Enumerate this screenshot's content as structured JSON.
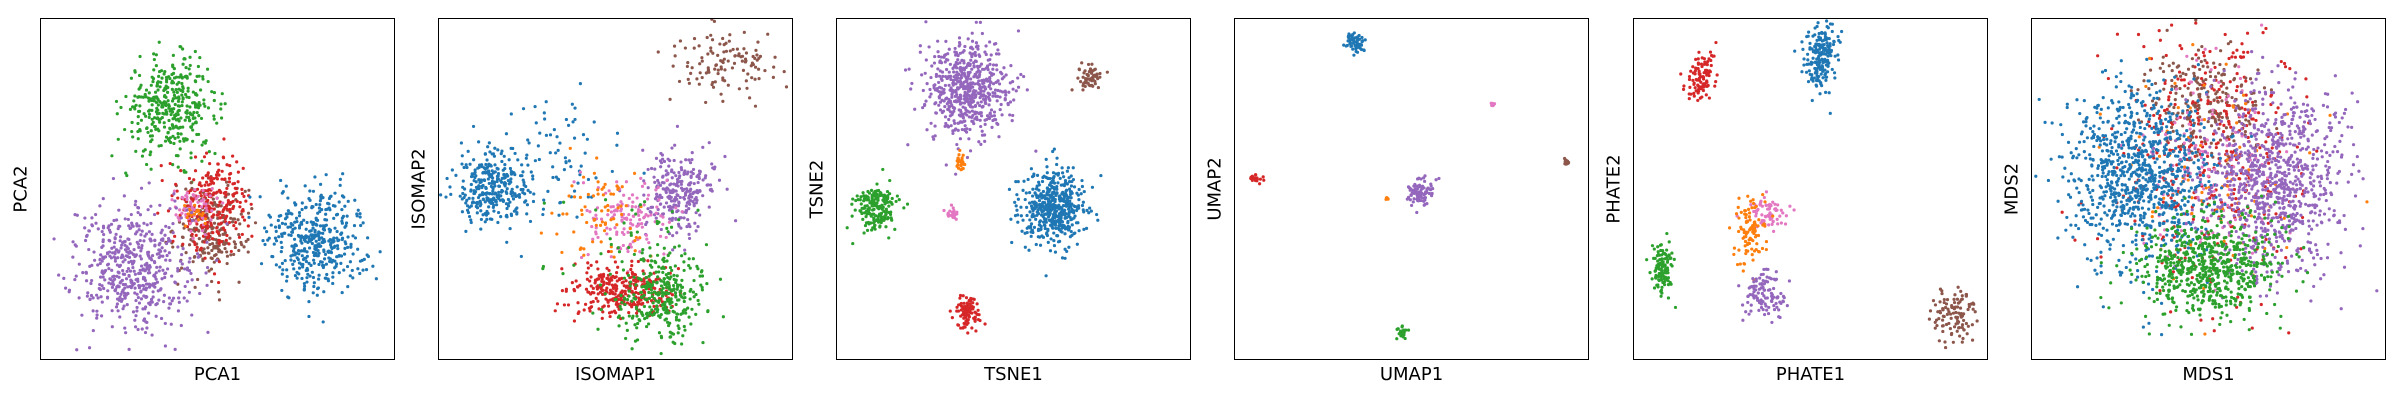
{
  "palette": {
    "blue": "#1f77b4",
    "orange": "#ff7f0e",
    "green": "#2ca02c",
    "red": "#d62728",
    "purple": "#9467bd",
    "brown": "#8c564b",
    "pink": "#e377c2"
  },
  "chart_data": [
    {
      "type": "scatter",
      "xlabel": "PCA1",
      "ylabel": "PCA2",
      "xlim": [
        0,
        1
      ],
      "ylim": [
        0,
        1
      ],
      "grid": false,
      "ticks": false,
      "clusters": [
        {
          "color": "green",
          "cx": 0.37,
          "cy": 0.74,
          "sx": 0.065,
          "sy": 0.07,
          "n": 380
        },
        {
          "color": "brown",
          "cx": 0.48,
          "cy": 0.38,
          "sx": 0.05,
          "sy": 0.07,
          "n": 220
        },
        {
          "color": "red",
          "cx": 0.49,
          "cy": 0.46,
          "sx": 0.05,
          "sy": 0.07,
          "n": 260
        },
        {
          "color": "pink",
          "cx": 0.44,
          "cy": 0.45,
          "sx": 0.03,
          "sy": 0.04,
          "n": 60
        },
        {
          "color": "orange",
          "cx": 0.44,
          "cy": 0.42,
          "sx": 0.02,
          "sy": 0.02,
          "n": 20
        },
        {
          "color": "blue",
          "cx": 0.78,
          "cy": 0.35,
          "sx": 0.07,
          "sy": 0.075,
          "n": 420
        },
        {
          "color": "purple",
          "cx": 0.26,
          "cy": 0.27,
          "sx": 0.085,
          "sy": 0.09,
          "n": 520
        }
      ]
    },
    {
      "type": "scatter",
      "xlabel": "ISOMAP1",
      "ylabel": "ISOMAP2",
      "xlim": [
        0,
        1
      ],
      "ylim": [
        0,
        1
      ],
      "grid": false,
      "ticks": false,
      "clusters": [
        {
          "color": "blue",
          "cx": 0.15,
          "cy": 0.51,
          "sx": 0.05,
          "sy": 0.055,
          "n": 320
        },
        {
          "color": "blue",
          "cx": 0.33,
          "cy": 0.58,
          "sx": 0.08,
          "sy": 0.1,
          "n": 80
        },
        {
          "color": "brown",
          "cx": 0.82,
          "cy": 0.87,
          "sx": 0.08,
          "sy": 0.05,
          "n": 120
        },
        {
          "color": "purple",
          "cx": 0.68,
          "cy": 0.49,
          "sx": 0.05,
          "sy": 0.06,
          "n": 260
        },
        {
          "color": "pink",
          "cx": 0.53,
          "cy": 0.41,
          "sx": 0.06,
          "sy": 0.06,
          "n": 130
        },
        {
          "color": "orange",
          "cx": 0.45,
          "cy": 0.42,
          "sx": 0.06,
          "sy": 0.07,
          "n": 70
        },
        {
          "color": "red",
          "cx": 0.52,
          "cy": 0.2,
          "sx": 0.07,
          "sy": 0.04,
          "n": 320
        },
        {
          "color": "green",
          "cx": 0.63,
          "cy": 0.18,
          "sx": 0.06,
          "sy": 0.06,
          "n": 300
        },
        {
          "color": "green",
          "cx": 0.55,
          "cy": 0.3,
          "sx": 0.12,
          "sy": 0.1,
          "n": 60
        }
      ]
    },
    {
      "type": "scatter",
      "xlabel": "TSNE1",
      "ylabel": "TSNE2",
      "xlim": [
        0,
        1
      ],
      "ylim": [
        0,
        1
      ],
      "grid": false,
      "ticks": false,
      "clusters": [
        {
          "color": "purple",
          "cx": 0.37,
          "cy": 0.79,
          "sx": 0.06,
          "sy": 0.075,
          "n": 600
        },
        {
          "color": "brown",
          "cx": 0.72,
          "cy": 0.83,
          "sx": 0.016,
          "sy": 0.02,
          "n": 60
        },
        {
          "color": "orange",
          "cx": 0.35,
          "cy": 0.58,
          "sx": 0.008,
          "sy": 0.01,
          "n": 25
        },
        {
          "color": "green",
          "cx": 0.11,
          "cy": 0.44,
          "sx": 0.03,
          "sy": 0.035,
          "n": 200
        },
        {
          "color": "pink",
          "cx": 0.33,
          "cy": 0.43,
          "sx": 0.008,
          "sy": 0.012,
          "n": 25
        },
        {
          "color": "blue",
          "cx": 0.61,
          "cy": 0.45,
          "sx": 0.045,
          "sy": 0.055,
          "n": 500
        },
        {
          "color": "red",
          "cx": 0.37,
          "cy": 0.13,
          "sx": 0.018,
          "sy": 0.025,
          "n": 100
        }
      ]
    },
    {
      "type": "scatter",
      "xlabel": "UMAP1",
      "ylabel": "UMAP2",
      "xlim": [
        0,
        1
      ],
      "ylim": [
        0,
        1
      ],
      "grid": false,
      "ticks": false,
      "clusters": [
        {
          "color": "blue",
          "cx": 0.34,
          "cy": 0.93,
          "sx": 0.012,
          "sy": 0.015,
          "n": 70
        },
        {
          "color": "pink",
          "cx": 0.73,
          "cy": 0.75,
          "sx": 0.003,
          "sy": 0.004,
          "n": 8
        },
        {
          "color": "red",
          "cx": 0.06,
          "cy": 0.53,
          "sx": 0.008,
          "sy": 0.008,
          "n": 25
        },
        {
          "color": "orange",
          "cx": 0.43,
          "cy": 0.47,
          "sx": 0.003,
          "sy": 0.003,
          "n": 6
        },
        {
          "color": "purple",
          "cx": 0.525,
          "cy": 0.49,
          "sx": 0.018,
          "sy": 0.022,
          "n": 90
        },
        {
          "color": "brown",
          "cx": 0.94,
          "cy": 0.58,
          "sx": 0.004,
          "sy": 0.006,
          "n": 12
        },
        {
          "color": "green",
          "cx": 0.47,
          "cy": 0.08,
          "sx": 0.008,
          "sy": 0.01,
          "n": 28
        }
      ]
    },
    {
      "type": "scatter",
      "xlabel": "PHATE1",
      "ylabel": "PHATE2",
      "xlim": [
        0,
        1
      ],
      "ylim": [
        0,
        1
      ],
      "grid": false,
      "ticks": false,
      "clusters": [
        {
          "color": "blue",
          "cx": 0.53,
          "cy": 0.89,
          "sx": 0.022,
          "sy": 0.05,
          "n": 200
        },
        {
          "color": "red",
          "cx": 0.19,
          "cy": 0.83,
          "sx": 0.02,
          "sy": 0.035,
          "n": 100
        },
        {
          "color": "pink",
          "cx": 0.38,
          "cy": 0.43,
          "sx": 0.025,
          "sy": 0.025,
          "n": 70
        },
        {
          "color": "orange",
          "cx": 0.33,
          "cy": 0.38,
          "sx": 0.022,
          "sy": 0.05,
          "n": 100
        },
        {
          "color": "green",
          "cx": 0.08,
          "cy": 0.27,
          "sx": 0.015,
          "sy": 0.04,
          "n": 120
        },
        {
          "color": "purple",
          "cx": 0.37,
          "cy": 0.19,
          "sx": 0.03,
          "sy": 0.035,
          "n": 110
        },
        {
          "color": "brown",
          "cx": 0.9,
          "cy": 0.13,
          "sx": 0.035,
          "sy": 0.04,
          "n": 110
        }
      ]
    },
    {
      "type": "scatter",
      "xlabel": "MDS1",
      "ylabel": "MDS2",
      "xlim": [
        0,
        1
      ],
      "ylim": [
        0,
        1
      ],
      "grid": false,
      "ticks": false,
      "clusters": [
        {
          "color": "red",
          "cx": 0.51,
          "cy": 0.62,
          "sx": 0.13,
          "sy": 0.2,
          "n": 420
        },
        {
          "color": "brown",
          "cx": 0.49,
          "cy": 0.75,
          "sx": 0.08,
          "sy": 0.09,
          "n": 220
        },
        {
          "color": "pink",
          "cx": 0.5,
          "cy": 0.55,
          "sx": 0.1,
          "sy": 0.15,
          "n": 120
        },
        {
          "color": "orange",
          "cx": 0.5,
          "cy": 0.55,
          "sx": 0.12,
          "sy": 0.2,
          "n": 80
        },
        {
          "color": "blue",
          "cx": 0.3,
          "cy": 0.54,
          "sx": 0.1,
          "sy": 0.13,
          "n": 900
        },
        {
          "color": "purple",
          "cx": 0.69,
          "cy": 0.52,
          "sx": 0.1,
          "sy": 0.13,
          "n": 900
        },
        {
          "color": "green",
          "cx": 0.5,
          "cy": 0.27,
          "sx": 0.1,
          "sy": 0.07,
          "n": 650
        }
      ]
    }
  ]
}
